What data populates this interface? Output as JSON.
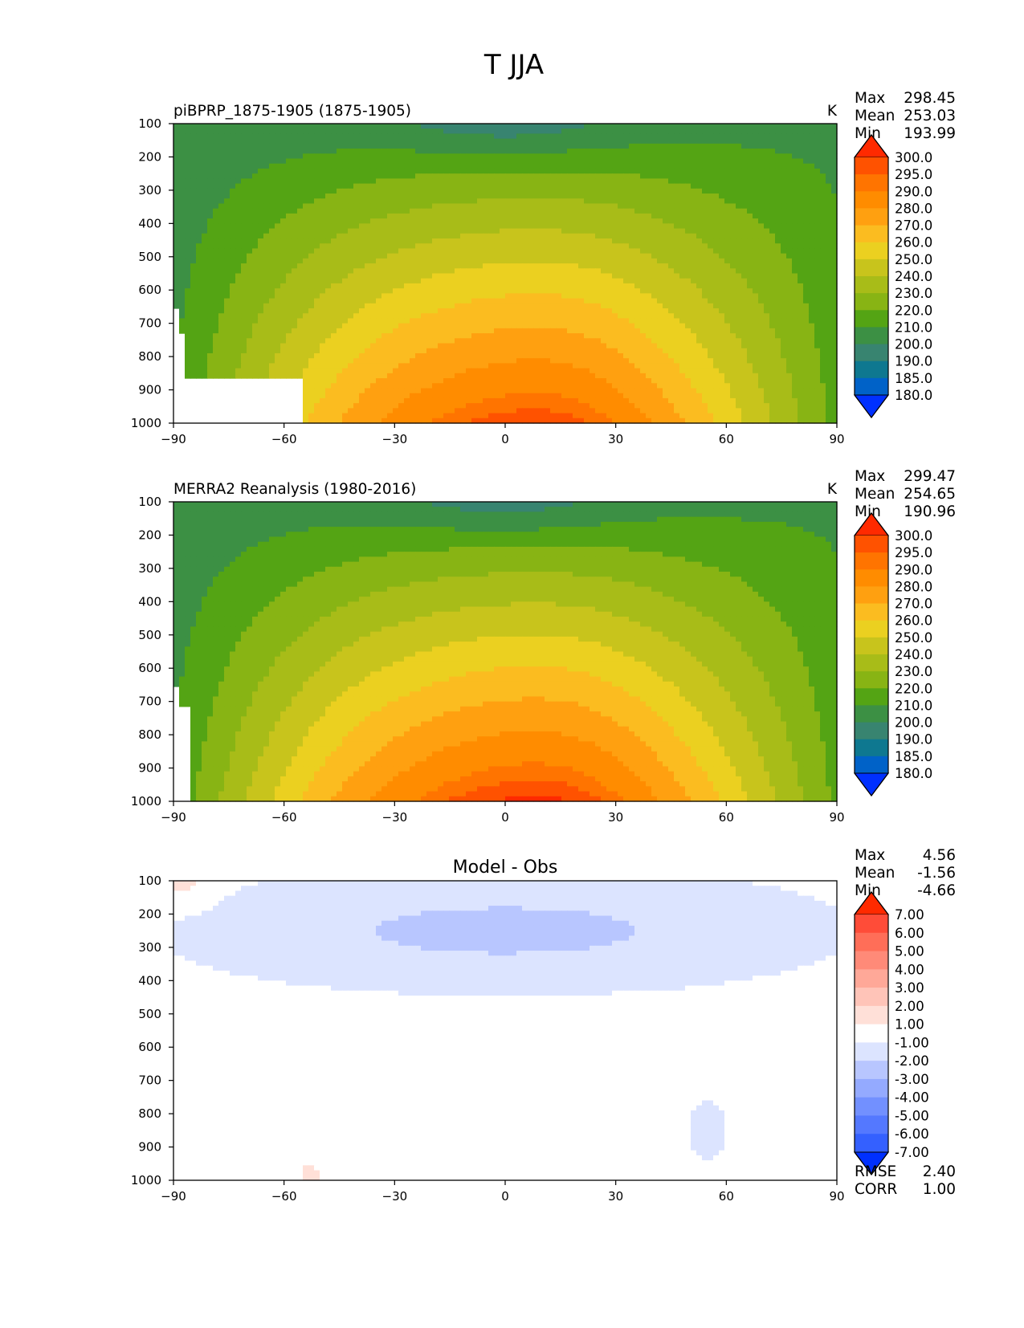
{
  "figure": {
    "title": "T JJA"
  },
  "chart_data": [
    {
      "type": "heatmap",
      "title": "piBPRP_1875-1905 (1875-1905)",
      "units": "K",
      "x": {
        "ticks": [
          -90,
          -60,
          -30,
          0,
          30,
          60,
          90
        ],
        "tick_labels": [
          "−90",
          "−60",
          "−30",
          "0",
          "30",
          "60",
          "90"
        ],
        "range": [
          -90,
          90
        ]
      },
      "y": {
        "ticks": [
          100,
          200,
          300,
          400,
          500,
          600,
          700,
          800,
          900,
          1000
        ],
        "tick_labels": [
          "100",
          "200",
          "300",
          "400",
          "500",
          "600",
          "700",
          "800",
          "900",
          "1000"
        ],
        "range": [
          100,
          1000
        ],
        "inverted": true
      },
      "stats": [
        {
          "label": "Max",
          "value": "298.45"
        },
        {
          "label": "Mean",
          "value": "253.03"
        },
        {
          "label": "Min",
          "value": "193.99"
        }
      ],
      "colorbar": {
        "levels": [
          "300.0",
          "295.0",
          "290.0",
          "280.0",
          "270.0",
          "260.0",
          "250.0",
          "240.0",
          "230.0",
          "220.0",
          "210.0",
          "200.0",
          "190.0",
          "185.0",
          "180.0"
        ],
        "colors": [
          "#ff2a00",
          "#ff5200",
          "#ff7400",
          "#ff8c00",
          "#ffa010",
          "#fbbc20",
          "#ebd020",
          "#c8c41c",
          "#a8bc18",
          "#88b414",
          "#54a414",
          "#3c9044",
          "#388470",
          "#0e7890",
          "#0062c8",
          "#0030ff"
        ]
      },
      "field_model": "model"
    },
    {
      "type": "heatmap",
      "title": "MERRA2 Reanalysis (1980-2016)",
      "units": "K",
      "x": {
        "ticks": [
          -90,
          -60,
          -30,
          0,
          30,
          60,
          90
        ],
        "tick_labels": [
          "−90",
          "−60",
          "−30",
          "0",
          "30",
          "60",
          "90"
        ],
        "range": [
          -90,
          90
        ]
      },
      "y": {
        "ticks": [
          100,
          200,
          300,
          400,
          500,
          600,
          700,
          800,
          900,
          1000
        ],
        "tick_labels": [
          "100",
          "200",
          "300",
          "400",
          "500",
          "600",
          "700",
          "800",
          "900",
          "1000"
        ],
        "range": [
          100,
          1000
        ],
        "inverted": true
      },
      "stats": [
        {
          "label": "Max",
          "value": "299.47"
        },
        {
          "label": "Mean",
          "value": "254.65"
        },
        {
          "label": "Min",
          "value": "190.96"
        }
      ],
      "colorbar": {
        "levels": [
          "300.0",
          "295.0",
          "290.0",
          "280.0",
          "270.0",
          "260.0",
          "250.0",
          "240.0",
          "230.0",
          "220.0",
          "210.0",
          "200.0",
          "190.0",
          "185.0",
          "180.0"
        ],
        "colors": [
          "#ff2a00",
          "#ff5200",
          "#ff7400",
          "#ff8c00",
          "#ffa010",
          "#fbbc20",
          "#ebd020",
          "#c8c41c",
          "#a8bc18",
          "#88b414",
          "#54a414",
          "#3c9044",
          "#388470",
          "#0e7890",
          "#0062c8",
          "#0030ff"
        ]
      },
      "field_model": "obs"
    },
    {
      "type": "heatmap",
      "title": "Model - Obs",
      "units": "",
      "x": {
        "ticks": [
          -90,
          -60,
          -30,
          0,
          30,
          60,
          90
        ],
        "tick_labels": [
          "−90",
          "−60",
          "−30",
          "0",
          "30",
          "60",
          "90"
        ],
        "range": [
          -90,
          90
        ]
      },
      "y": {
        "ticks": [
          100,
          200,
          300,
          400,
          500,
          600,
          700,
          800,
          900,
          1000
        ],
        "tick_labels": [
          "100",
          "200",
          "300",
          "400",
          "500",
          "600",
          "700",
          "800",
          "900",
          "1000"
        ],
        "range": [
          100,
          1000
        ],
        "inverted": true
      },
      "stats": [
        {
          "label": "Max",
          "value": "4.56"
        },
        {
          "label": "Mean",
          "value": "-1.56"
        },
        {
          "label": "Min",
          "value": "-4.66"
        }
      ],
      "metrics": [
        {
          "label": "RMSE",
          "value": "2.40"
        },
        {
          "label": "CORR",
          "value": "1.00"
        }
      ],
      "colorbar": {
        "levels": [
          "7.00",
          "6.00",
          "5.00",
          "4.00",
          "3.00",
          "2.00",
          "1.00",
          "-1.00",
          "-2.00",
          "-3.00",
          "-4.00",
          "-5.00",
          "-6.00",
          "-7.00"
        ],
        "colors": [
          "#ff2a00",
          "#ff4c38",
          "#ff6e58",
          "#ff8a78",
          "#ffa898",
          "#ffc4b8",
          "#ffe0d8",
          "#ffffff",
          "#dce4ff",
          "#b8c6ff",
          "#94aaff",
          "#7290ff",
          "#5478ff",
          "#3460ff",
          "#0030ff"
        ]
      },
      "field_model": "diff"
    }
  ]
}
